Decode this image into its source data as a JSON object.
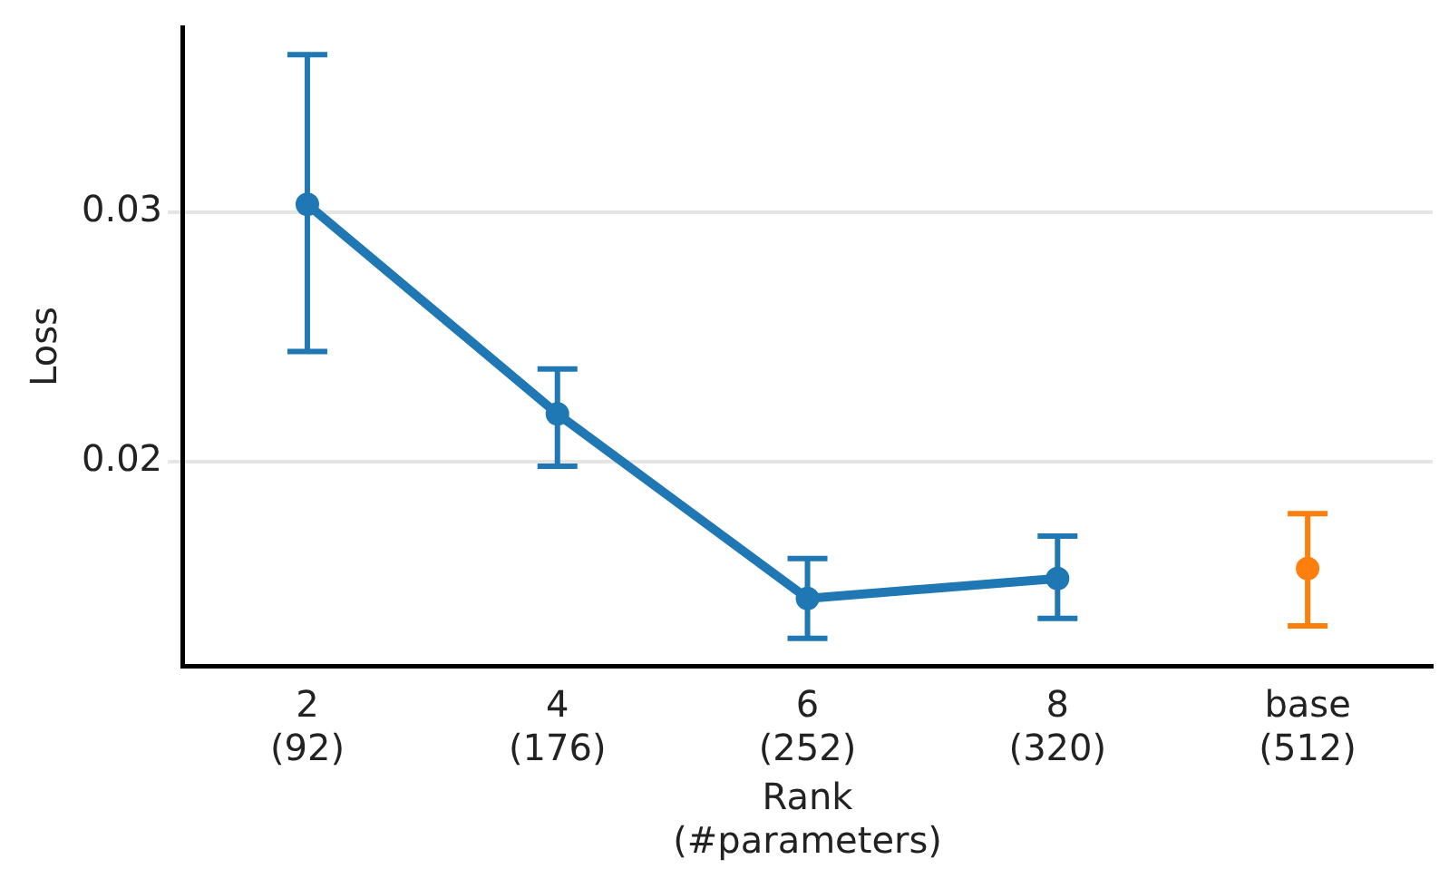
{
  "chart_data": {
    "type": "line",
    "xlabel": "Rank\n(#parameters)",
    "ylabel": "Loss",
    "categories": [
      "2\n(92)",
      "4\n(176)",
      "6\n(252)",
      "8\n(320)",
      "base\n(512)"
    ],
    "series": [
      {
        "color": "#1f77b4",
        "values": [
          0.0303,
          0.0219,
          0.0145,
          0.0153,
          null
        ],
        "errors": [
          [
            0.0244,
            0.0363
          ],
          [
            0.0198,
            0.0237
          ],
          [
            0.0129,
            0.0161
          ],
          [
            0.0137,
            0.017
          ],
          null
        ]
      },
      {
        "type": "scatter",
        "color": "#ff7f0e",
        "values": [
          null,
          null,
          null,
          null,
          0.0157
        ],
        "errors": [
          null,
          null,
          null,
          null,
          [
            0.0134,
            0.0179
          ]
        ]
      }
    ],
    "ylim": [
      0.0118,
      0.0374
    ],
    "yticks": [
      0.02,
      0.03
    ],
    "grid": "y",
    "legend": false,
    "marker": "circle",
    "line_style": "solid"
  }
}
